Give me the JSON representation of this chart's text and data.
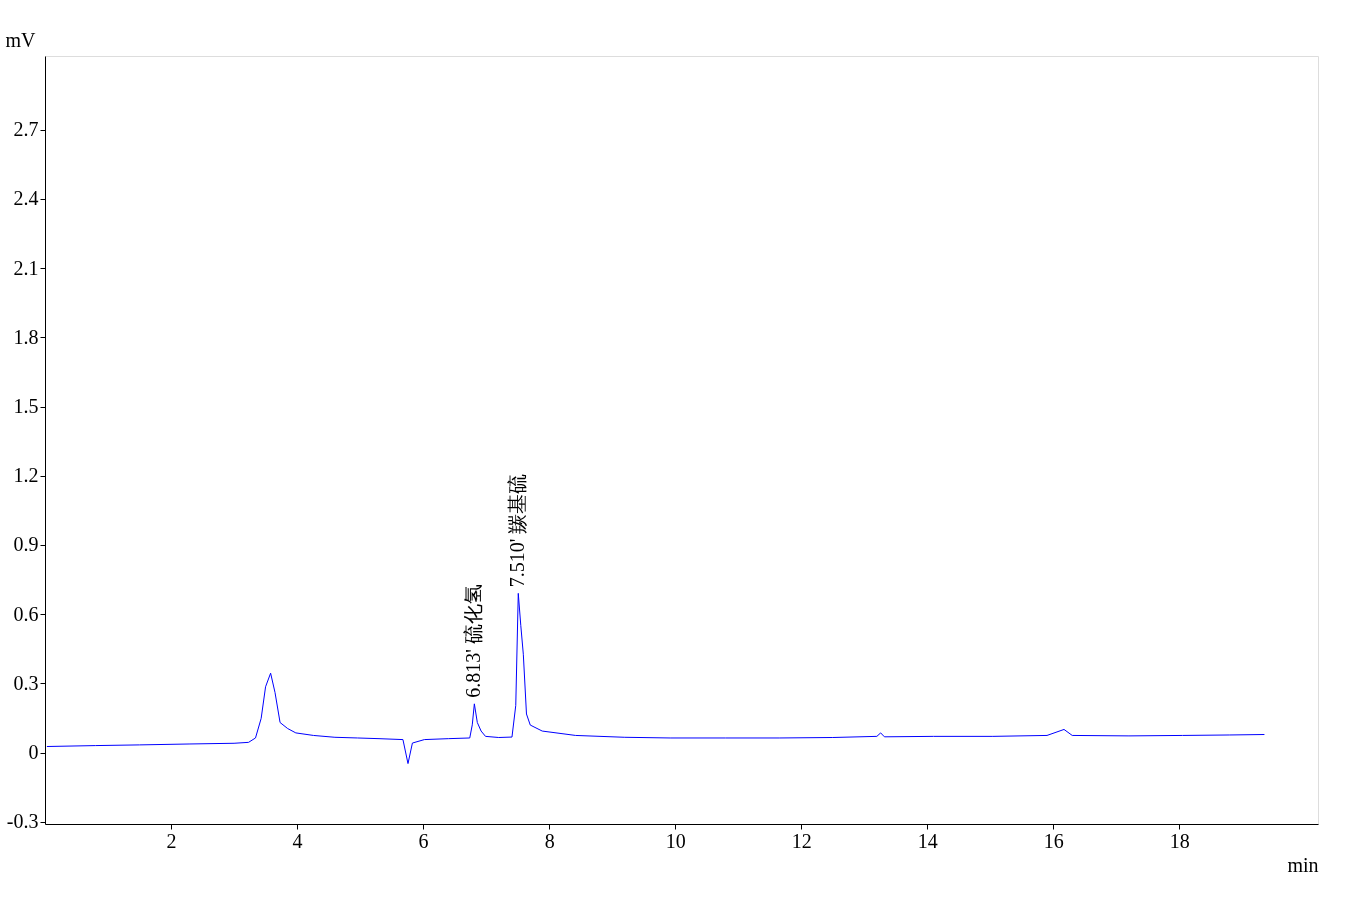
{
  "chart_data": {
    "type": "line",
    "xlabel": "min",
    "ylabel": "mV",
    "x": [
      0.03,
      0.8,
      1.5,
      2.3,
      3.0,
      3.23,
      3.34,
      3.43,
      3.5,
      3.58,
      3.65,
      3.73,
      3.85,
      3.98,
      4.26,
      4.6,
      4.96,
      5.3,
      5.68,
      5.76,
      5.83,
      6.02,
      6.4,
      6.74,
      6.78,
      6.813,
      6.86,
      6.92,
      6.99,
      7.2,
      7.41,
      7.47,
      7.51,
      7.55,
      7.59,
      7.64,
      7.7,
      7.89,
      8.42,
      9.2,
      9.92,
      10.8,
      11.65,
      12.5,
      13.2,
      13.26,
      13.32,
      14.1,
      15.04,
      15.9,
      16.17,
      16.3,
      17.2,
      18.05,
      18.8,
      19.35
    ],
    "series": [
      {
        "color": "#0000ff",
        "values": [
          0.026,
          0.03,
          0.033,
          0.037,
          0.04,
          0.044,
          0.063,
          0.148,
          0.285,
          0.344,
          0.26,
          0.13,
          0.104,
          0.085,
          0.074,
          0.066,
          0.063,
          0.06,
          0.056,
          -0.048,
          0.041,
          0.056,
          0.06,
          0.063,
          0.12,
          0.211,
          0.13,
          0.093,
          0.07,
          0.065,
          0.067,
          0.204,
          0.69,
          0.55,
          0.426,
          0.167,
          0.119,
          0.093,
          0.074,
          0.066,
          0.063,
          0.063,
          0.063,
          0.065,
          0.07,
          0.085,
          0.068,
          0.07,
          0.07,
          0.074,
          0.1,
          0.074,
          0.072,
          0.074,
          0.076,
          0.078
        ]
      }
    ],
    "xlim": [
      0,
      20.2
    ],
    "xticks": [
      2,
      4,
      6,
      8,
      10,
      12,
      14,
      16,
      18
    ],
    "ylim": [
      -0.31,
      3.02
    ],
    "yticks": [
      -0.3,
      0,
      0.3,
      0.6,
      0.9,
      1.2,
      1.5,
      1.8,
      2.1,
      2.4,
      2.7
    ],
    "grid": false,
    "marker": "none",
    "line_style": "solid",
    "annotations": [
      {
        "text": "6.813' 硫化氢",
        "x": 6.813,
        "y": 0.211
      },
      {
        "text": "7.510' 羰基硫",
        "x": 7.51,
        "y": 0.69
      }
    ]
  }
}
